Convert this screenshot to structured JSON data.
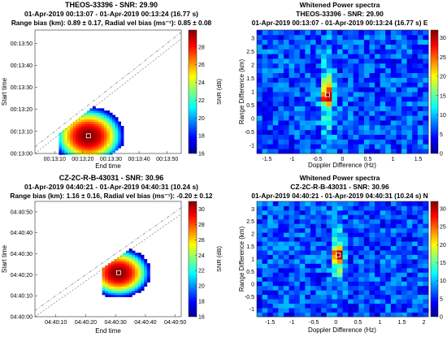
{
  "chart_data": [
    {
      "type": "heatmap",
      "title": "THEOS-33396 - SNR: 29.90",
      "subtitle": "01-Apr-2019 00:13:07 - 01-Apr-2019 00:13:24 (16.77 s)",
      "subtitle2": "Range bias (km): 0.89 ± 0.17,  Radial vel bias (ms⁻¹): 0.85 ± 0.08",
      "xlabel": "End time",
      "ylabel": "Start time",
      "xticks": [
        "00:13:10",
        "00:13:20",
        "00:13:30",
        "00:13:40",
        "00:13:50"
      ],
      "xtick_values": [
        10,
        20,
        30,
        40,
        50
      ],
      "xlim": [
        3,
        55
      ],
      "yticks": [
        "00:13:00",
        "00:13:10",
        "00:13:20",
        "00:13:30",
        "00:13:40",
        "00:13:50"
      ],
      "ytick_values": [
        0,
        10,
        20,
        30,
        40,
        50
      ],
      "ylim": [
        0,
        56
      ],
      "colorbar_label": "SNR (dB)",
      "colorbar_ticks": [
        "16",
        "18",
        "20",
        "22",
        "24",
        "26",
        "28"
      ],
      "colorbar_tick_values": [
        16,
        18,
        20,
        22,
        24,
        26,
        28
      ],
      "clim": [
        16,
        29.9
      ],
      "peak": [
        22,
        8
      ],
      "marker_label": "o"
    },
    {
      "type": "heatmap",
      "title": "Whitened Power spectra",
      "subtitle": "THEOS-33396 - SNR: 29.90",
      "subtitle2": "01-Apr-2019 00:13:07 - 01-Apr-2019 00:13:24 (16.77 s) E",
      "xlabel": "Doppler Difference (Hz)",
      "ylabel": "Range Difference (km)",
      "xticks": [
        "-1.5",
        "-1",
        "-0.5",
        "0",
        "0.5",
        "1",
        "1.5"
      ],
      "xtick_values": [
        -1.5,
        -1,
        -0.5,
        0,
        0.5,
        1,
        1.5
      ],
      "xlim": [
        -1.7,
        1.7
      ],
      "yticks": [
        "-1",
        "-0.5",
        "0",
        "0.5",
        "1",
        "1.5",
        "2",
        "2.5",
        "3"
      ],
      "ytick_values": [
        -1,
        -0.5,
        0,
        0.5,
        1,
        1.5,
        2,
        2.5,
        3
      ],
      "ylim": [
        -1.3,
        3.3
      ],
      "colorbar_ticks": [
        "0",
        "5",
        "10",
        "15",
        "20",
        "25",
        "30"
      ],
      "colorbar_tick_values": [
        0,
        5,
        10,
        15,
        20,
        25,
        30
      ],
      "clim": [
        0,
        32
      ],
      "peak": [
        -0.3,
        0.89
      ],
      "marker_label": "o"
    },
    {
      "type": "heatmap",
      "title": "CZ-2C-R-B-43031 - SNR: 30.96",
      "subtitle": "01-Apr-2019 04:40:21 - 01-Apr-2019 04:40:31 (10.24 s)",
      "subtitle2": "Range bias (km): 1.16 ± 0.16,  Radial vel bias (ms⁻¹): -0.20 ± 0.12",
      "xlabel": "End time",
      "ylabel": "Start time",
      "xticks": [
        "04:40:10",
        "04:40:20",
        "04:40:30",
        "04:40:40",
        "04:40:50"
      ],
      "xtick_values": [
        10,
        20,
        30,
        40,
        50
      ],
      "xlim": [
        3,
        52
      ],
      "yticks": [
        "04:40:00",
        "04:40:10",
        "04:40:20",
        "04:40:30",
        "04:40:40",
        "04:40:50"
      ],
      "ytick_values": [
        0,
        10,
        20,
        30,
        40,
        50
      ],
      "ylim": [
        0,
        55
      ],
      "colorbar_label": "SNR (dB)",
      "colorbar_ticks": [
        "16",
        "18",
        "20",
        "22",
        "24",
        "26",
        "28",
        "30"
      ],
      "colorbar_tick_values": [
        16,
        18,
        20,
        22,
        24,
        26,
        28,
        30
      ],
      "clim": [
        16,
        31
      ],
      "peak": [
        31,
        21
      ],
      "marker_label": "o"
    },
    {
      "type": "heatmap",
      "title": "Whitened Power spectra",
      "subtitle": "CZ-2C-R-B-43031 - SNR: 30.96",
      "subtitle2": "01-Apr-2019 04:40:21 - 01-Apr-2019 04:40:31 (10.24 s) N",
      "xlabel": "Doppler Difference (Hz)",
      "ylabel": "Range Difference (km)",
      "xticks": [
        "-1.5",
        "-1",
        "-0.5",
        "0",
        "0.5",
        "1",
        "1.5",
        "2"
      ],
      "xtick_values": [
        -1.5,
        -1,
        -0.5,
        0,
        0.5,
        1,
        1.5,
        2
      ],
      "xlim": [
        -1.8,
        2.1
      ],
      "yticks": [
        "-1",
        "-0.5",
        "0",
        "0.5",
        "1",
        "1.5",
        "2",
        "2.5",
        "3"
      ],
      "ytick_values": [
        -1,
        -0.5,
        0,
        0.5,
        1,
        1.5,
        2,
        2.5,
        3
      ],
      "ylim": [
        -1.3,
        3.3
      ],
      "colorbar_ticks": [
        "0",
        "5",
        "10",
        "15",
        "20",
        "25",
        "30"
      ],
      "colorbar_tick_values": [
        0,
        5,
        10,
        15,
        20,
        25,
        30
      ],
      "clim": [
        0,
        32
      ],
      "peak": [
        0.05,
        1.16
      ],
      "marker_label": "o"
    }
  ]
}
